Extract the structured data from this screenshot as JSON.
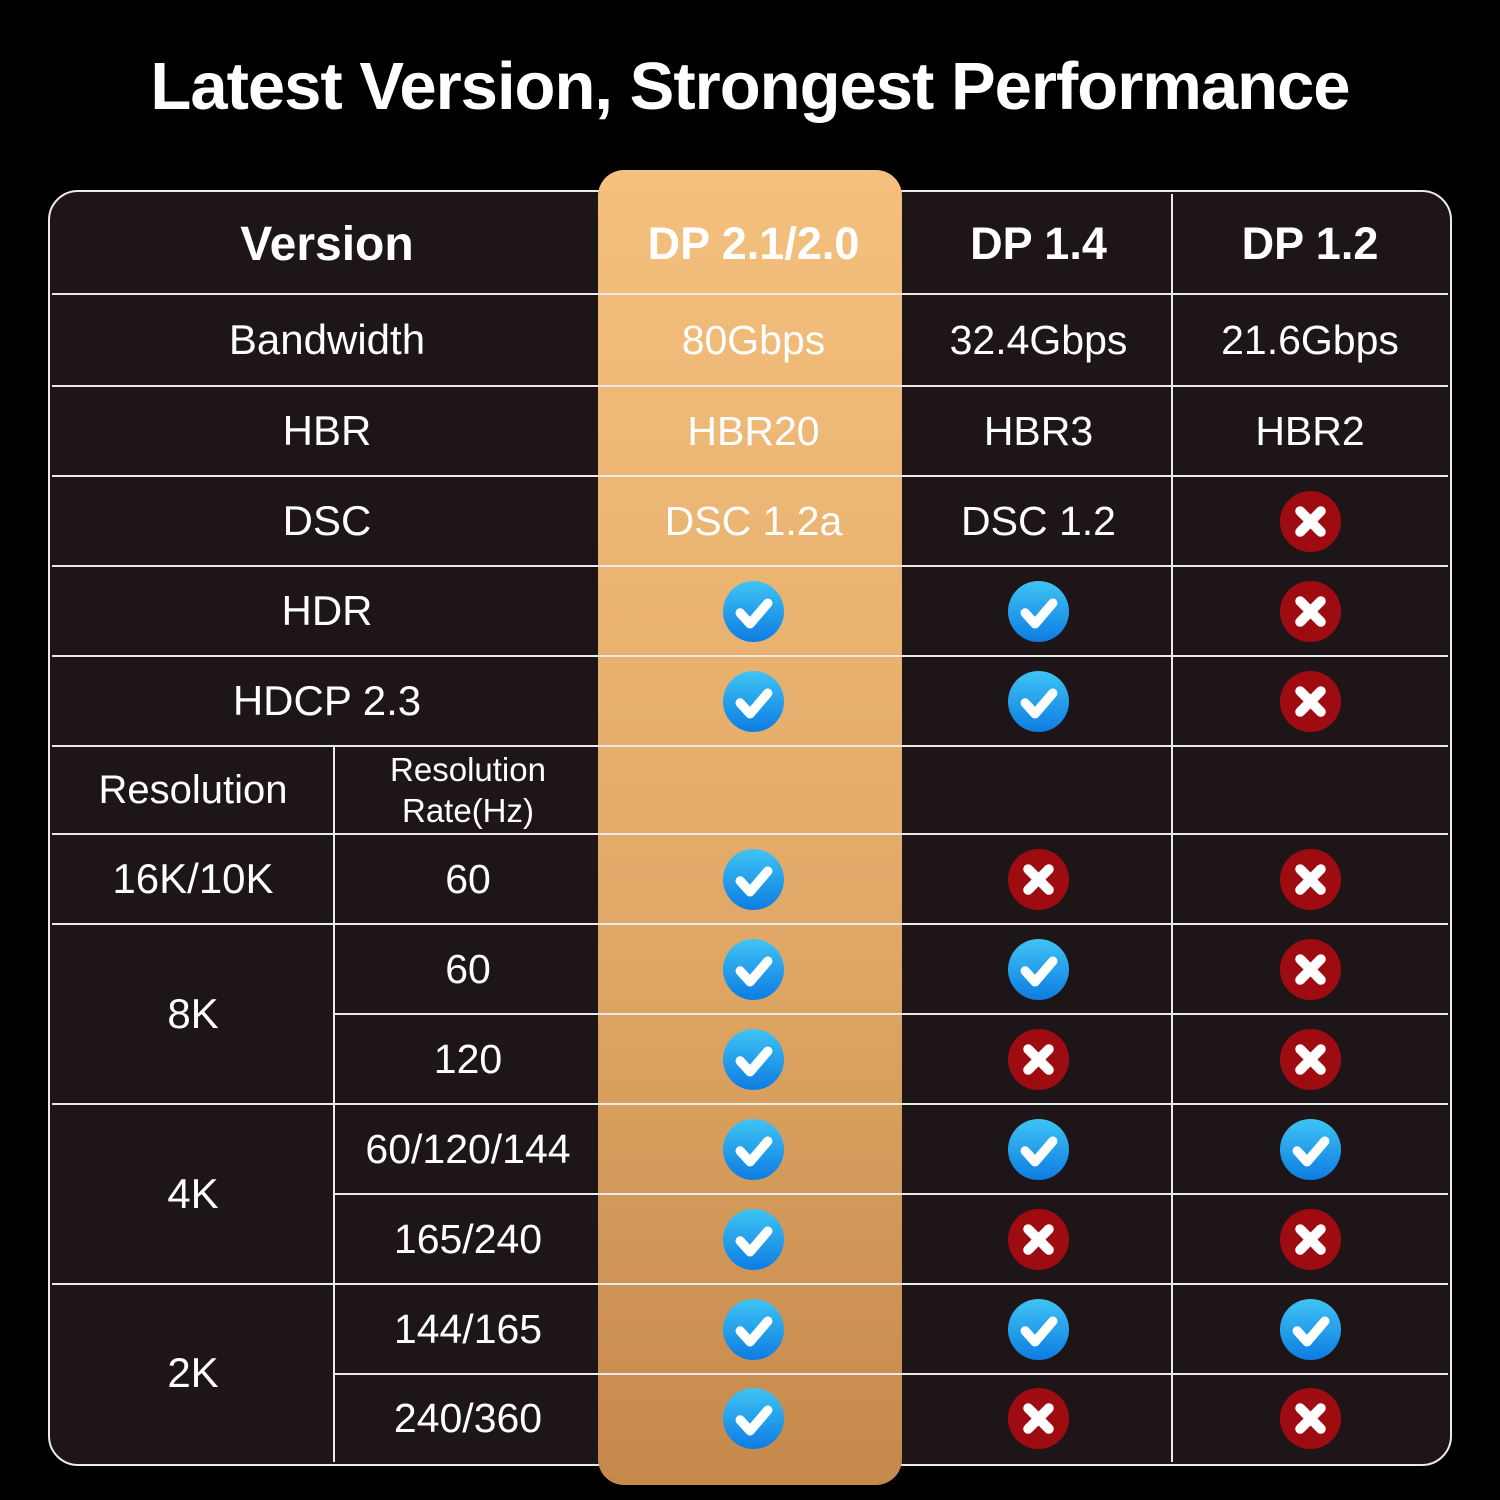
{
  "page": {
    "title": "Latest Version, Strongest Performance"
  },
  "table": {
    "header": {
      "version_label": "Version",
      "columns": [
        "DP 2.1/2.0",
        "DP 1.4",
        "DP 1.2"
      ]
    },
    "highlight_column": "DP 2.1/2.0",
    "spec_rows": [
      {
        "label": "Bandwidth",
        "values": [
          "80Gbps",
          "32.4Gbps",
          "21.6Gbps"
        ]
      },
      {
        "label": "HBR",
        "values": [
          "HBR20",
          "HBR3",
          "HBR2"
        ]
      },
      {
        "label": "DSC",
        "values": [
          "DSC 1.2a",
          "DSC 1.2",
          "cross"
        ]
      },
      {
        "label": "HDR",
        "values": [
          "check",
          "check",
          "cross"
        ]
      },
      {
        "label": "HDCP 2.3",
        "values": [
          "check",
          "check",
          "cross"
        ]
      }
    ],
    "resolution_header": {
      "left": "Resolution",
      "right": "Resolution Rate(Hz)"
    },
    "resolution_rows": [
      {
        "group": "16K/10K",
        "group_span": 1,
        "rate": "60",
        "values": [
          "check",
          "cross",
          "cross"
        ]
      },
      {
        "group": "8K",
        "group_span": 2,
        "rate": "60",
        "values": [
          "check",
          "check",
          "cross"
        ]
      },
      {
        "group": null,
        "group_span": 0,
        "rate": "120",
        "values": [
          "check",
          "cross",
          "cross"
        ]
      },
      {
        "group": "4K",
        "group_span": 2,
        "rate": "60/120/144",
        "values": [
          "check",
          "check",
          "check"
        ]
      },
      {
        "group": null,
        "group_span": 0,
        "rate": "165/240",
        "values": [
          "check",
          "cross",
          "cross"
        ]
      },
      {
        "group": "2K",
        "group_span": 2,
        "rate": "144/165",
        "values": [
          "check",
          "check",
          "check"
        ]
      },
      {
        "group": null,
        "group_span": 0,
        "rate": "240/360",
        "values": [
          "check",
          "cross",
          "cross"
        ]
      }
    ],
    "colors": {
      "page_background": "#000000",
      "cell_background": "#1d1518",
      "grid_line": "#eceae7",
      "text": "#ffffff",
      "highlight_top": "#f4c07d",
      "highlight_mid": "#e2aa69",
      "highlight_bottom": "#c5894b",
      "check_blue_top": "#3fc4f4",
      "check_blue_bottom": "#0d7ce2",
      "cross_red": "#9e0c11",
      "icon_mark": "#ffffff"
    }
  }
}
